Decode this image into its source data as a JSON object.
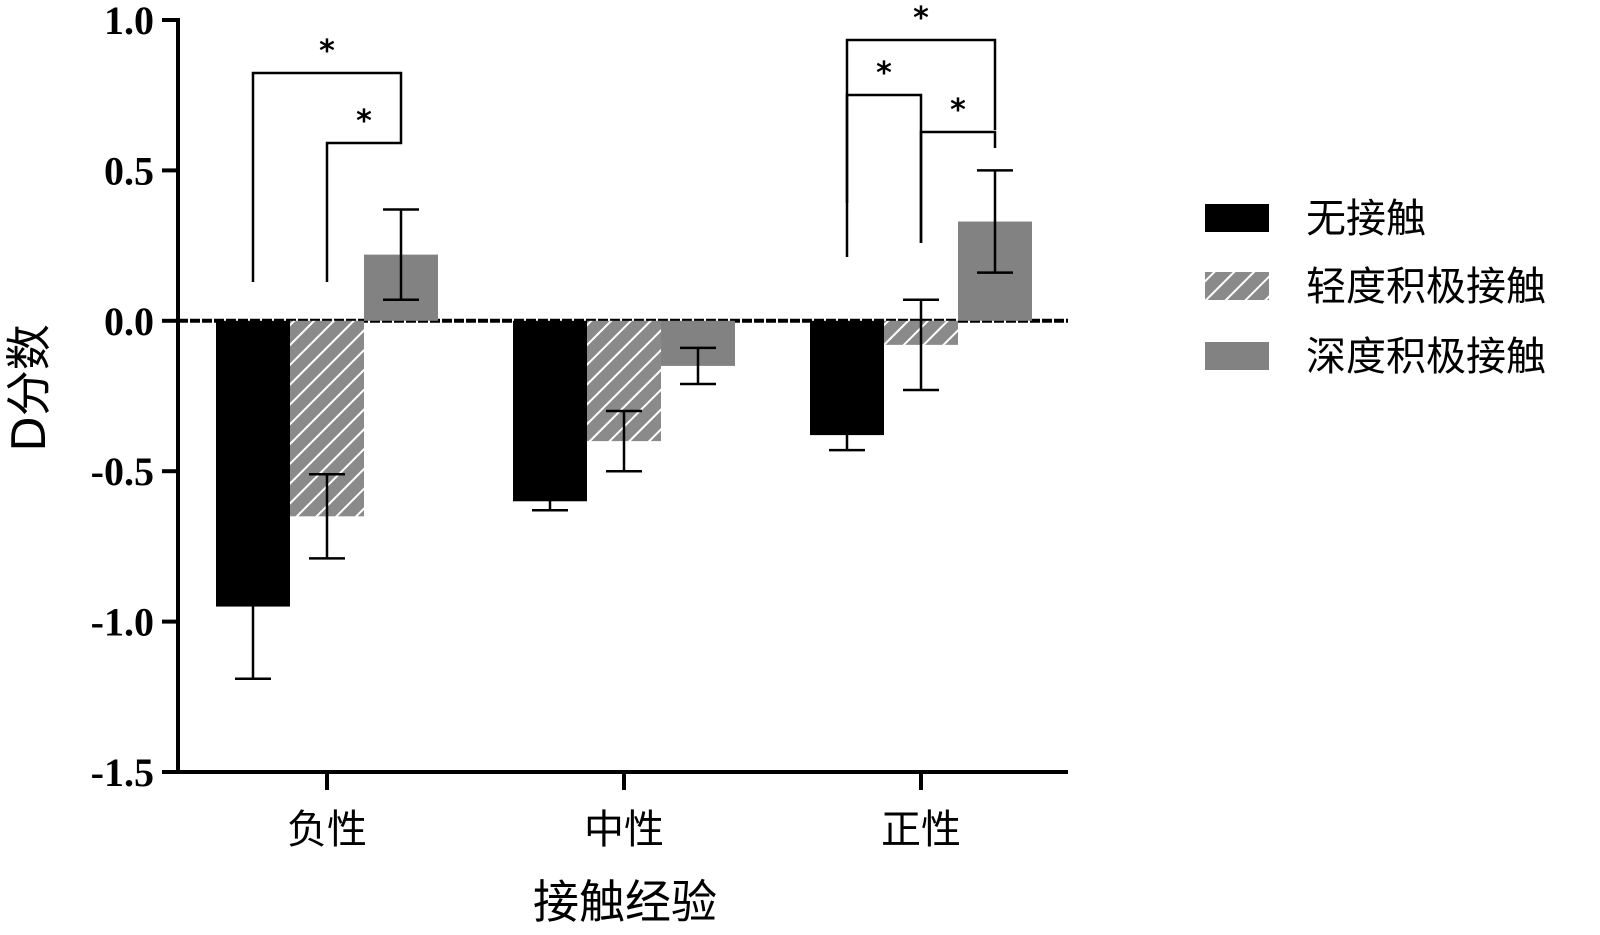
{
  "chart_data": {
    "type": "bar",
    "title": "",
    "xlabel": "接触经验",
    "ylabel": "D分数",
    "categories": [
      "负性",
      "中性",
      "正性"
    ],
    "ylim": [
      -1.5,
      1.0
    ],
    "yticks": [
      1.0,
      0.5,
      0.0,
      -0.5,
      -1.0,
      -1.5
    ],
    "ytick_labels": [
      "1.0",
      "0.5",
      "0.0",
      "-0.5",
      "-1.0",
      "-1.5"
    ],
    "grid": false,
    "legend_position": "right",
    "series": [
      {
        "name": "无接触",
        "values": [
          -0.95,
          -0.6,
          -0.38
        ],
        "errors": [
          0.24,
          0.03,
          0.05
        ],
        "color": "#000000",
        "pattern": "solid"
      },
      {
        "name": "轻度积极接触",
        "values": [
          -0.65,
          -0.4,
          -0.08
        ],
        "errors": [
          0.14,
          0.1,
          0.15
        ],
        "color": "#808080",
        "pattern": "hatched"
      },
      {
        "name": "深度积极接触",
        "values": [
          0.22,
          -0.15,
          0.33
        ],
        "errors": [
          0.15,
          0.06,
          0.17
        ],
        "color": "#828282",
        "pattern": "solid"
      }
    ],
    "significance": [
      {
        "category": 0,
        "from_series": 0,
        "to_series": 2,
        "label": "*"
      },
      {
        "category": 0,
        "from_series": 1,
        "to_series": 2,
        "label": "*"
      },
      {
        "category": 2,
        "from_series": 0,
        "to_series": 2,
        "label": "*"
      },
      {
        "category": 2,
        "from_series": 0,
        "to_series": 1,
        "label": "*"
      },
      {
        "category": 2,
        "from_series": 1,
        "to_series": 2,
        "label": "*"
      }
    ]
  }
}
